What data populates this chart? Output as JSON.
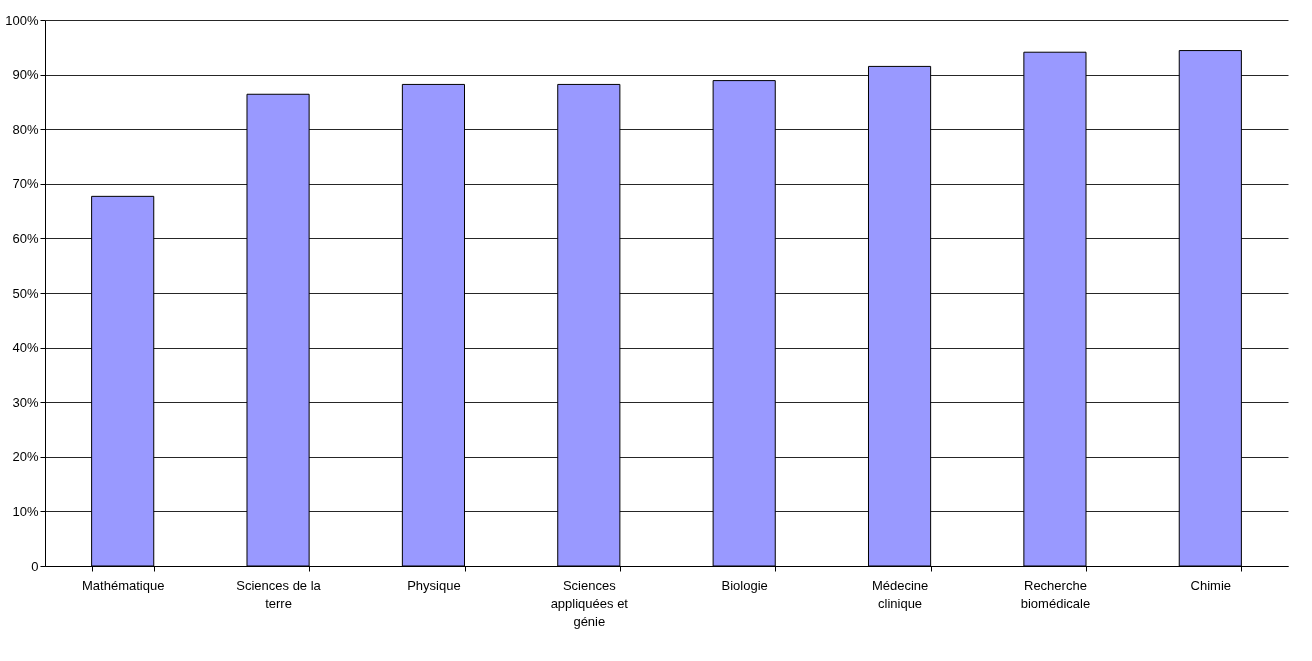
{
  "chart_data": {
    "type": "bar",
    "categories": [
      "Mathématique",
      "Sciences de la terre",
      "Physique",
      "Sciences appliquées et génie",
      "Biologie",
      "Médecine clinique",
      "Recherche biomédicale",
      "Chimie"
    ],
    "values": [
      67.7,
      86.4,
      88.2,
      88.2,
      88.9,
      91.5,
      94.1,
      94.4
    ],
    "color": "#9999ff",
    "ylim": [
      0,
      100
    ],
    "yticks": [
      0,
      {
        "value": 10,
        "label": "10%"
      },
      {
        "value": 20,
        "label": "20%"
      },
      {
        "value": 30,
        "label": "30%"
      },
      {
        "value": 40,
        "label": "40%"
      },
      {
        "value": 50,
        "label": "50%"
      },
      {
        "value": 60,
        "label": "60%"
      },
      {
        "value": 70,
        "label": "70%"
      },
      {
        "value": 80,
        "label": "80%"
      },
      {
        "value": 90,
        "label": "90%"
      },
      {
        "value": 100,
        "label": "100%"
      }
    ],
    "grid": "y"
  }
}
